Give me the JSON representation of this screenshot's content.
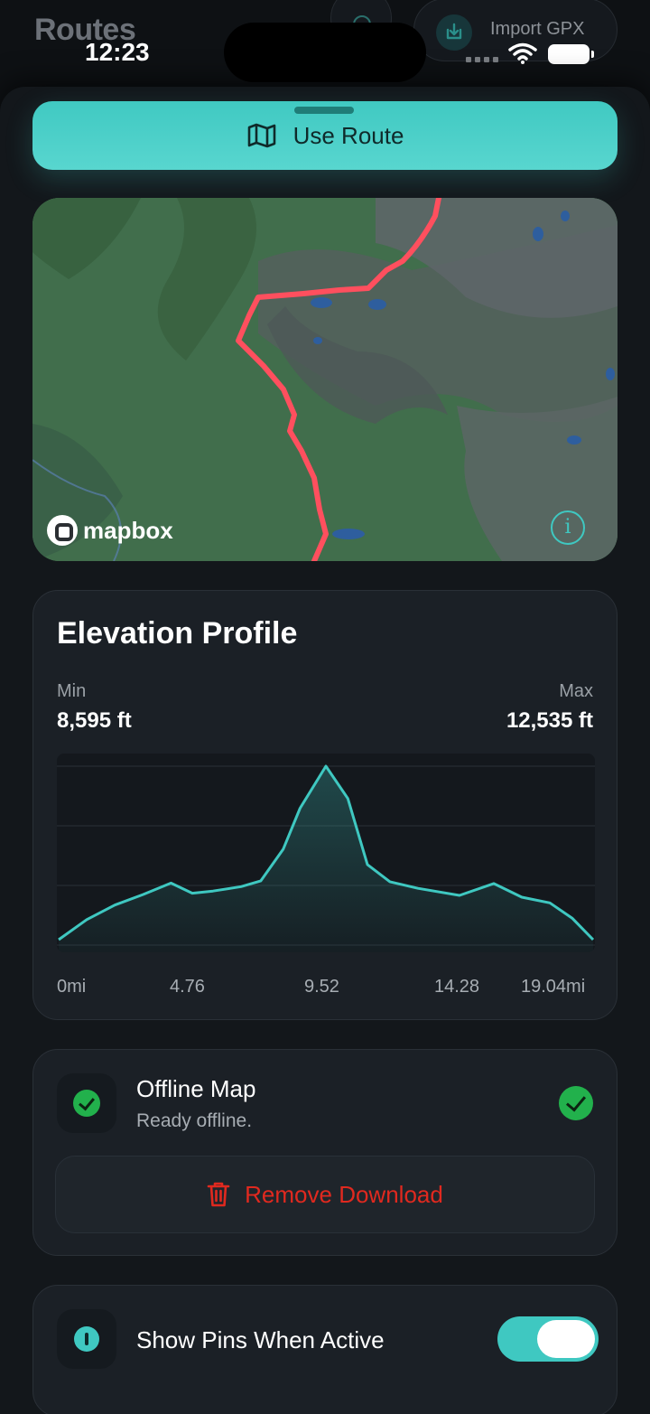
{
  "background_page": {
    "title": "Routes",
    "import_label": "Import GPX"
  },
  "status_bar": {
    "time": "12:23"
  },
  "primary_action": {
    "label": "Use Route"
  },
  "map": {
    "attribution": "mapbox"
  },
  "elevation": {
    "title": "Elevation Profile",
    "min_label": "Min",
    "min_value": "8,595 ft",
    "max_label": "Max",
    "max_value": "12,535 ft",
    "x_ticks": [
      "0mi",
      "4.76",
      "9.52",
      "14.28",
      "19.04mi"
    ]
  },
  "offline_map": {
    "title": "Offline Map",
    "subtitle": "Ready offline.",
    "remove_label": "Remove Download"
  },
  "pins": {
    "label": "Show Pins When Active",
    "enabled": true
  },
  "colors": {
    "accent": "#3fc8c1",
    "route_line": "#ff4f5e",
    "danger": "#e0291f",
    "success": "#22b14c"
  },
  "chart_data": {
    "type": "area",
    "x": [
      0,
      1,
      2,
      3,
      4,
      4.76,
      5.5,
      6.5,
      7.2,
      8.0,
      8.6,
      9.52,
      10.3,
      11.0,
      11.8,
      12.8,
      14.28,
      15.5,
      16.5,
      17.5,
      18.3,
      19.04
    ],
    "y": [
      8595,
      9050,
      9380,
      9620,
      9880,
      9650,
      9700,
      9800,
      9930,
      10650,
      11580,
      12535,
      11800,
      10300,
      9910,
      9760,
      9600,
      9870,
      9560,
      9430,
      9080,
      8595
    ],
    "ylim": [
      8595,
      12535
    ],
    "xlim": [
      0,
      19.04
    ],
    "grid": true
  }
}
